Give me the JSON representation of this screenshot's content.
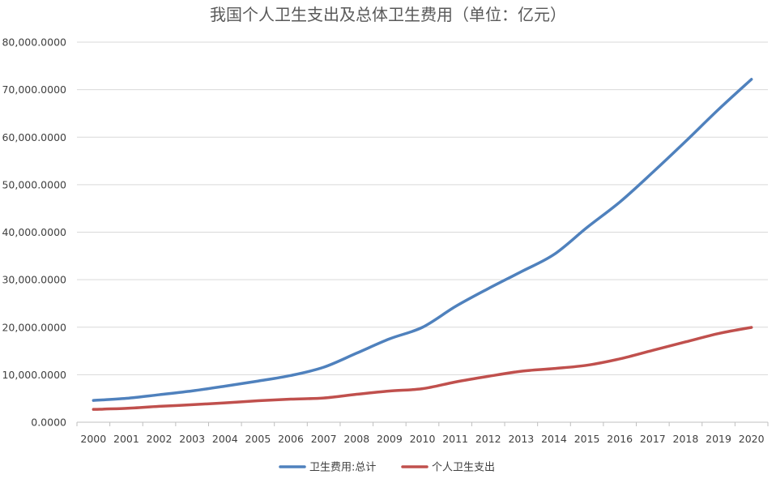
{
  "chart_data": {
    "type": "line",
    "title": "我国个人卫生支出及总体卫生费用（单位：亿元）",
    "xlabel": "",
    "ylabel": "",
    "categories": [
      "2000",
      "2001",
      "2002",
      "2003",
      "2004",
      "2005",
      "2006",
      "2007",
      "2008",
      "2009",
      "2010",
      "2011",
      "2012",
      "2013",
      "2014",
      "2015",
      "2016",
      "2017",
      "2018",
      "2019",
      "2020"
    ],
    "ylim": [
      0,
      80000
    ],
    "yticks": [
      0,
      10000,
      20000,
      30000,
      40000,
      50000,
      60000,
      70000,
      80000
    ],
    "ytick_labels": [
      "0.0000",
      "10,000.0000",
      "20,000.0000",
      "30,000.0000",
      "40,000.0000",
      "50,000.0000",
      "60,000.0000",
      "70,000.0000",
      "80,000.0000"
    ],
    "grid": true,
    "legend_position": "bottom",
    "series": [
      {
        "name": "卫生费用:总计",
        "color": "#4f81bd",
        "values": [
          4587,
          5026,
          5790,
          6584,
          7590,
          8660,
          9843,
          11574,
          14535,
          17542,
          19980,
          24346,
          28119,
          31669,
          35312,
          40975,
          46345,
          52598,
          59122,
          65841,
          72175
        ]
      },
      {
        "name": "个人卫生支出",
        "color": "#c0504d",
        "values": [
          2705,
          2913,
          3342,
          3679,
          4071,
          4521,
          4854,
          5099,
          5876,
          6571,
          7051,
          8465,
          9656,
          10730,
          11295,
          11992,
          13337,
          15134,
          16912,
          18673,
          19959
        ]
      }
    ]
  }
}
